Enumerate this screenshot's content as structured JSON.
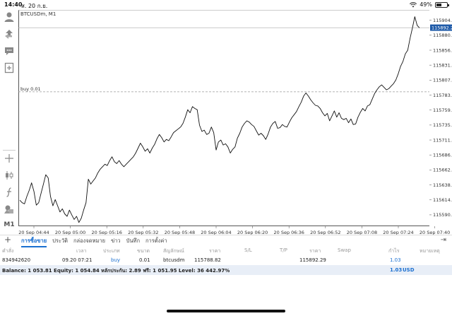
{
  "status_bar": {
    "time": "14:40",
    "date": "ส. 20 ก.ย.",
    "battery": "49%"
  },
  "toolbar": {
    "icons": [
      "account-icon",
      "trade-icon",
      "chat-icon",
      "add-chart-icon",
      "crosshair-icon",
      "candlestick-icon",
      "indicator-icon",
      "objects-icon"
    ],
    "timeframe": "M1"
  },
  "chart": {
    "symbol_label": "BTCUSDm, M1",
    "buy_line_label": "buy 0.01",
    "current_price_label": "115892.29",
    "accent_color": "#1e5aa8"
  },
  "chart_data": {
    "type": "line",
    "xlabel": "",
    "ylabel": "",
    "ylim": [
      115572,
      115921
    ],
    "yticks": [
      "115904.33",
      "115880.15",
      "115856.00",
      "115831.85",
      "115807.70",
      "115783.55",
      "115759.40",
      "115735.25",
      "115711.10",
      "115686.95",
      "115662.80",
      "115638.65",
      "115614.50",
      "115590.35"
    ],
    "xticks": [
      "20 Sep 04:44",
      "20 Sep 05:00",
      "20 Sep 05:16",
      "20 Sep 05:32",
      "20 Sep 05:48",
      "20 Sep 06:04",
      "20 Sep 06:20",
      "20 Sep 06:36",
      "20 Sep 06:52",
      "20 Sep 07:08",
      "20 Sep 07:24",
      "20 Sep 07:40"
    ],
    "buy_level": 115788.82,
    "current_price": 115892.29,
    "grid": false,
    "series": [
      {
        "values": [
          115614,
          115610,
          115608,
          115620,
          115630,
          115642,
          115628,
          115606,
          115610,
          115625,
          115640,
          115655,
          115650,
          115620,
          115605,
          115615,
          115605,
          115595,
          115600,
          115592,
          115588,
          115598,
          115590,
          115583,
          115588,
          115578,
          115585,
          115598,
          115610,
          115648,
          115640,
          115645,
          115650,
          115658,
          115664,
          115668,
          115672,
          115670,
          115678,
          115684,
          115676,
          115673,
          115678,
          115672,
          115668,
          115672,
          115676,
          115680,
          115684,
          115690,
          115698,
          115706,
          115700,
          115693,
          115697,
          115690,
          115698,
          115704,
          115713,
          115720,
          115715,
          115708,
          115712,
          115710,
          115716,
          115723,
          115726,
          115729,
          115732,
          115738,
          115748,
          115760,
          115755,
          115765,
          115762,
          115760,
          115735,
          115725,
          115727,
          115720,
          115722,
          115732,
          115723,
          115695,
          115708,
          115711,
          115703,
          115705,
          115700,
          115690,
          115696,
          115700,
          115714,
          115722,
          115732,
          115738,
          115742,
          115740,
          115736,
          115733,
          115726,
          115719,
          115722,
          115718,
          115712,
          115721,
          115732,
          115738,
          115741,
          115730,
          115731,
          115736,
          115733,
          115732,
          115740,
          115747,
          115752,
          115757,
          115765,
          115772,
          115782,
          115787,
          115782,
          115776,
          115771,
          115767,
          115766,
          115762,
          115755,
          115750,
          115754,
          115742,
          115750,
          115758,
          115748,
          115755,
          115746,
          115744,
          115746,
          115739,
          115745,
          115736,
          115737,
          115748,
          115756,
          115762,
          115758,
          115766,
          115768,
          115777,
          115786,
          115792,
          115797,
          115800,
          115796,
          115792,
          115794,
          115798,
          115802,
          115808,
          115818,
          115830,
          115838,
          115850,
          115856,
          115875,
          115892,
          115910,
          115896,
          115892
        ]
      }
    ]
  },
  "tabs": [
    {
      "label": "การซื้อขาย",
      "active": true
    },
    {
      "label": "ประวัติ",
      "active": false
    },
    {
      "label": "กล่องจดหมาย",
      "active": false
    },
    {
      "label": "ข่าว",
      "active": false
    },
    {
      "label": "บันทึก",
      "active": false
    },
    {
      "label": "การตั้งค่า",
      "active": false
    }
  ],
  "table": {
    "headers": [
      "คำสั่ง",
      "เวลา",
      "ประเภท",
      "ขนาด",
      "สัญลักษณ์",
      "ราคา",
      "S/L",
      "T/P",
      "ราคา",
      "Swap",
      "กำไร",
      "หมายเหตุ"
    ],
    "rows": [
      {
        "order": "834942620",
        "time": "09.20 07:21",
        "type": "buy",
        "volume": "0.01",
        "symbol": "btcusdm",
        "price": "115788.82",
        "sl": "",
        "tp": "",
        "current_price": "115892.29",
        "swap": "",
        "profit": "1.03",
        "comment": ""
      }
    ],
    "balance_line": "Balance: 1 053.81 Equity: 1 054.84 หลักประกัน: 2.89 ฟรี: 1 051.95 Level: 36 442.97%",
    "total_profit": "1.03",
    "currency": "USD"
  }
}
